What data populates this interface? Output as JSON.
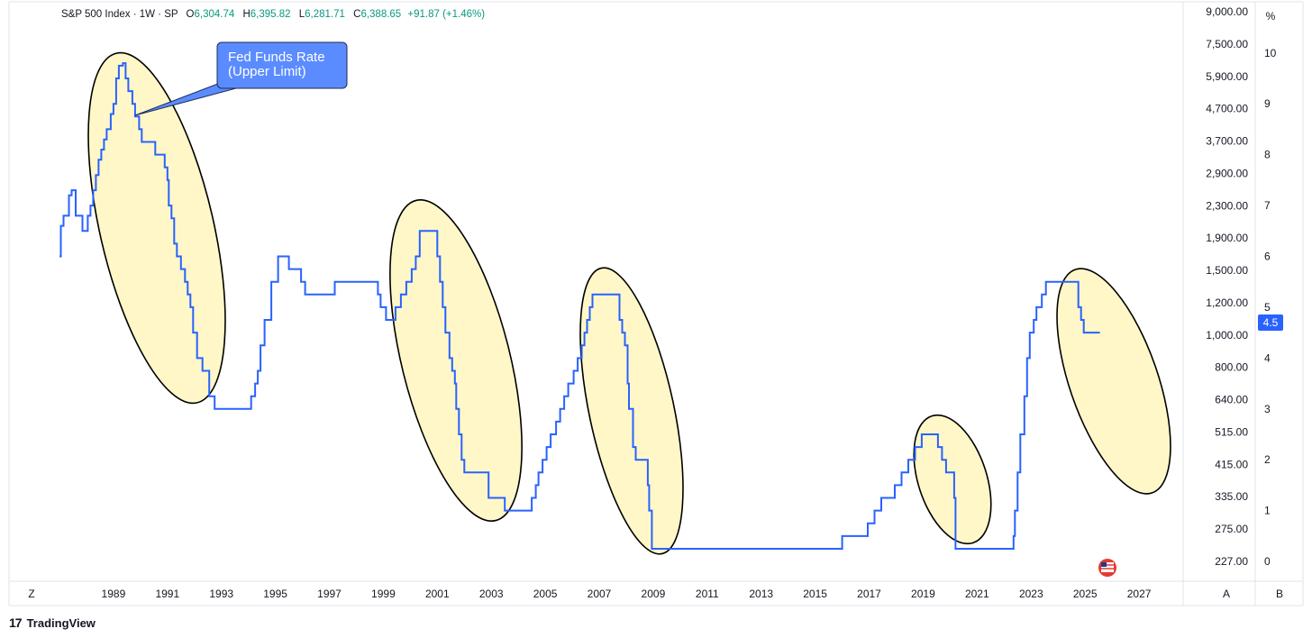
{
  "header": {
    "symbol": "S&P 500 Index · 1W · SP",
    "open_label": "O",
    "open": "6,304.74",
    "high_label": "H",
    "high": "6,395.82",
    "low_label": "L",
    "low": "6,281.71",
    "close_label": "C",
    "close": "6,388.65",
    "change": "+91.87 (+1.46%)"
  },
  "chart_data": {
    "type": "line",
    "title": "",
    "annotation": "Fed Funds Rate\n(Upper Limit)",
    "x_ticks": [
      "1989",
      "1991",
      "1993",
      "1995",
      "1997",
      "1999",
      "2001",
      "2003",
      "2005",
      "2007",
      "2009",
      "2011",
      "2013",
      "2015",
      "2017",
      "2019",
      "2021",
      "2023",
      "2025",
      "2027"
    ],
    "xlim": [
      1986.9,
      2028.2
    ],
    "left_axis_values": [
      "9,000.00",
      "7,500.00",
      "5,900.00",
      "4,700.00",
      "3,700.00",
      "2,900.00",
      "2,300.00",
      "1,900.00",
      "1,500.00",
      "1,200.00",
      "1,000.00",
      "800.00",
      "640.00",
      "515.00",
      "415.00",
      "335.00",
      "275.00",
      "227.00"
    ],
    "right_axis_unit": "%",
    "right_axis_ticks": [
      "10",
      "9",
      "8",
      "7",
      "6",
      "5",
      "4",
      "3",
      "2",
      "1",
      "0"
    ],
    "ylim": [
      -0.3,
      10.9
    ],
    "last_value_label": "4.5",
    "line_color": "#2962ff",
    "grid": false,
    "series": [
      {
        "name": "Fed Funds Rate (Upper Limit)",
        "points": [
          [
            1987.0,
            6.0
          ],
          [
            1987.05,
            6.6
          ],
          [
            1987.15,
            6.8
          ],
          [
            1987.3,
            6.8
          ],
          [
            1987.35,
            7.2
          ],
          [
            1987.45,
            7.3
          ],
          [
            1987.55,
            7.3
          ],
          [
            1987.6,
            6.8
          ],
          [
            1987.8,
            6.8
          ],
          [
            1987.85,
            6.5
          ],
          [
            1988.0,
            6.5
          ],
          [
            1988.05,
            6.8
          ],
          [
            1988.15,
            7.0
          ],
          [
            1988.25,
            7.3
          ],
          [
            1988.35,
            7.6
          ],
          [
            1988.45,
            7.9
          ],
          [
            1988.55,
            8.1
          ],
          [
            1988.65,
            8.3
          ],
          [
            1988.75,
            8.5
          ],
          [
            1988.9,
            8.8
          ],
          [
            1989.0,
            9.0
          ],
          [
            1989.1,
            9.5
          ],
          [
            1989.2,
            9.75
          ],
          [
            1989.35,
            9.8
          ],
          [
            1989.45,
            9.5
          ],
          [
            1989.55,
            9.25
          ],
          [
            1989.7,
            9.0
          ],
          [
            1989.8,
            8.75
          ],
          [
            1989.95,
            8.5
          ],
          [
            1990.05,
            8.25
          ],
          [
            1990.5,
            8.25
          ],
          [
            1990.55,
            8.0
          ],
          [
            1990.8,
            8.0
          ],
          [
            1990.9,
            7.75
          ],
          [
            1991.0,
            7.5
          ],
          [
            1991.05,
            7.0
          ],
          [
            1991.15,
            6.75
          ],
          [
            1991.25,
            6.25
          ],
          [
            1991.35,
            6.0
          ],
          [
            1991.5,
            5.75
          ],
          [
            1991.65,
            5.5
          ],
          [
            1991.75,
            5.25
          ],
          [
            1991.85,
            5.0
          ],
          [
            1991.95,
            4.5
          ],
          [
            1992.1,
            4.0
          ],
          [
            1992.3,
            3.75
          ],
          [
            1992.55,
            3.25
          ],
          [
            1992.75,
            3.0
          ],
          [
            1993.0,
            3.0
          ],
          [
            1994.0,
            3.0
          ],
          [
            1994.1,
            3.25
          ],
          [
            1994.25,
            3.5
          ],
          [
            1994.35,
            3.75
          ],
          [
            1994.45,
            4.25
          ],
          [
            1994.6,
            4.75
          ],
          [
            1994.85,
            5.5
          ],
          [
            1995.1,
            6.0
          ],
          [
            1995.5,
            5.75
          ],
          [
            1995.95,
            5.5
          ],
          [
            1996.1,
            5.25
          ],
          [
            1997.2,
            5.5
          ],
          [
            1998.7,
            5.5
          ],
          [
            1998.8,
            5.25
          ],
          [
            1998.9,
            5.0
          ],
          [
            1999.1,
            4.75
          ],
          [
            1999.45,
            5.0
          ],
          [
            1999.65,
            5.25
          ],
          [
            1999.85,
            5.5
          ],
          [
            2000.05,
            5.75
          ],
          [
            2000.2,
            6.0
          ],
          [
            2000.35,
            6.5
          ],
          [
            2000.95,
            6.5
          ],
          [
            2001.0,
            6.0
          ],
          [
            2001.1,
            5.5
          ],
          [
            2001.2,
            5.0
          ],
          [
            2001.3,
            4.5
          ],
          [
            2001.45,
            4.0
          ],
          [
            2001.55,
            3.75
          ],
          [
            2001.65,
            3.5
          ],
          [
            2001.7,
            3.0
          ],
          [
            2001.8,
            2.5
          ],
          [
            2001.9,
            2.0
          ],
          [
            2002.0,
            1.75
          ],
          [
            2002.85,
            1.75
          ],
          [
            2002.9,
            1.25
          ],
          [
            2003.45,
            1.25
          ],
          [
            2003.5,
            1.0
          ],
          [
            2004.45,
            1.0
          ],
          [
            2004.5,
            1.25
          ],
          [
            2004.65,
            1.5
          ],
          [
            2004.75,
            1.75
          ],
          [
            2004.9,
            2.0
          ],
          [
            2005.05,
            2.25
          ],
          [
            2005.2,
            2.5
          ],
          [
            2005.4,
            2.75
          ],
          [
            2005.55,
            3.0
          ],
          [
            2005.7,
            3.25
          ],
          [
            2005.85,
            3.5
          ],
          [
            2006.05,
            3.75
          ],
          [
            2006.2,
            4.0
          ],
          [
            2006.35,
            4.25
          ],
          [
            2006.45,
            4.5
          ],
          [
            2006.55,
            4.75
          ],
          [
            2006.65,
            5.0
          ],
          [
            2006.75,
            5.25
          ],
          [
            2007.7,
            5.25
          ],
          [
            2007.75,
            4.75
          ],
          [
            2007.85,
            4.5
          ],
          [
            2007.95,
            4.25
          ],
          [
            2008.05,
            3.5
          ],
          [
            2008.1,
            3.0
          ],
          [
            2008.25,
            2.25
          ],
          [
            2008.35,
            2.0
          ],
          [
            2008.8,
            1.5
          ],
          [
            2008.85,
            1.0
          ],
          [
            2008.95,
            0.25
          ],
          [
            2015.95,
            0.25
          ],
          [
            2016.0,
            0.5
          ],
          [
            2016.95,
            0.75
          ],
          [
            2017.2,
            1.0
          ],
          [
            2017.45,
            1.25
          ],
          [
            2017.95,
            1.5
          ],
          [
            2018.2,
            1.75
          ],
          [
            2018.45,
            2.0
          ],
          [
            2018.7,
            2.25
          ],
          [
            2018.95,
            2.5
          ],
          [
            2019.55,
            2.25
          ],
          [
            2019.7,
            2.0
          ],
          [
            2019.85,
            1.75
          ],
          [
            2020.15,
            1.25
          ],
          [
            2020.2,
            0.25
          ],
          [
            2022.2,
            0.25
          ],
          [
            2022.35,
            0.5
          ],
          [
            2022.4,
            1.0
          ],
          [
            2022.5,
            1.75
          ],
          [
            2022.6,
            2.5
          ],
          [
            2022.75,
            3.25
          ],
          [
            2022.85,
            4.0
          ],
          [
            2022.95,
            4.5
          ],
          [
            2023.1,
            4.75
          ],
          [
            2023.2,
            5.0
          ],
          [
            2023.4,
            5.25
          ],
          [
            2023.55,
            5.5
          ],
          [
            2024.7,
            5.5
          ],
          [
            2024.75,
            5.0
          ],
          [
            2024.85,
            4.75
          ],
          [
            2024.95,
            4.5
          ],
          [
            2025.55,
            4.5
          ]
        ]
      }
    ],
    "highlight_regions": [
      {
        "from": "1989",
        "to": "1993"
      },
      {
        "from": "2000",
        "to": "2003"
      },
      {
        "from": "2007",
        "to": "2009"
      },
      {
        "from": "2019",
        "to": "2020"
      },
      {
        "from": "2024",
        "to": "2027"
      }
    ],
    "highlight_color": "#fff7c7"
  },
  "bottom_bar": {
    "left_button": "Z",
    "auto_button": "A",
    "right_button": "B"
  },
  "footer": {
    "logo_mark": "17",
    "brand": "TradingView"
  },
  "colors": {
    "line": "#2962ff",
    "callout": "#5b8cff",
    "up": "#089981"
  }
}
